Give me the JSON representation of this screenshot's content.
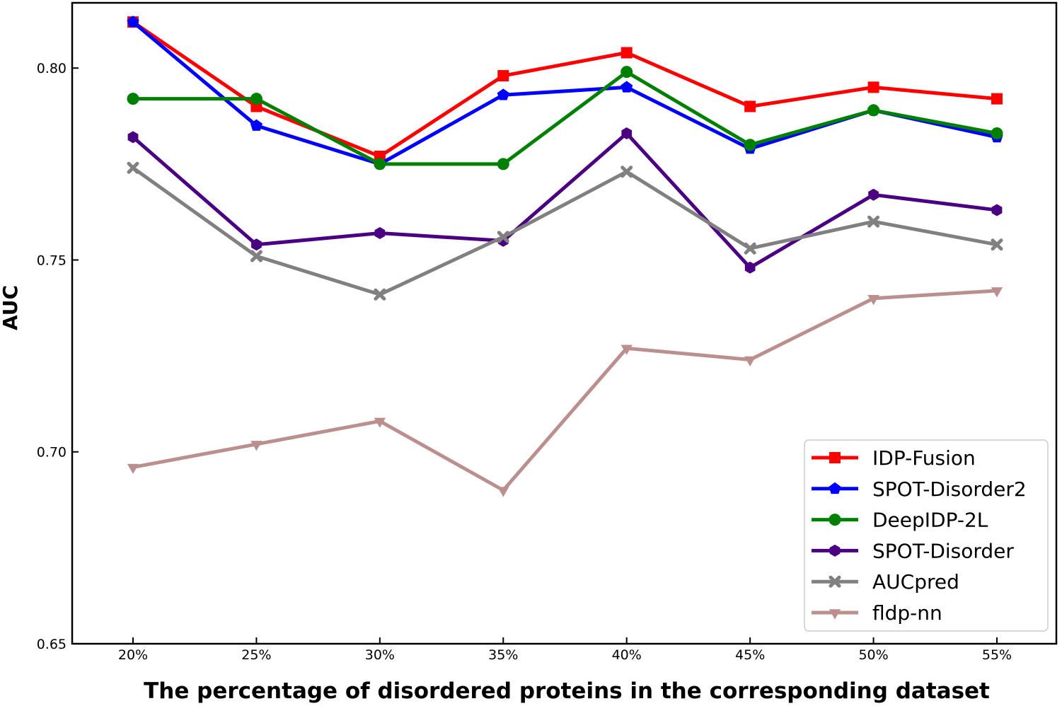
{
  "chart_data": {
    "type": "line",
    "title": "",
    "xlabel": "The percentage of disordered proteins in the corresponding dataset",
    "ylabel": "AUC",
    "categories": [
      "20%",
      "25%",
      "30%",
      "35%",
      "40%",
      "45%",
      "50%",
      "55%"
    ],
    "ylim": [
      0.65,
      0.817
    ],
    "yticks": [
      "0.65",
      "0.70",
      "0.75",
      "0.80"
    ],
    "grid": false,
    "legend_position": "lower-right",
    "series": [
      {
        "name": "IDP-Fusion",
        "color": "#ff0000",
        "marker": "square",
        "values": [
          0.812,
          0.79,
          0.777,
          0.798,
          0.804,
          0.79,
          0.795,
          0.792
        ]
      },
      {
        "name": "SPOT-Disorder2",
        "color": "#0000ff",
        "marker": "pentagon",
        "values": [
          0.812,
          0.785,
          0.775,
          0.793,
          0.795,
          0.779,
          0.789,
          0.782
        ]
      },
      {
        "name": "DeepIDP-2L",
        "color": "#008000",
        "marker": "circle",
        "values": [
          0.792,
          0.792,
          0.775,
          0.775,
          0.799,
          0.78,
          0.789,
          0.783
        ]
      },
      {
        "name": "SPOT-Disorder",
        "color": "#4b0082",
        "marker": "hexagon",
        "values": [
          0.782,
          0.754,
          0.757,
          0.755,
          0.783,
          0.748,
          0.767,
          0.763
        ]
      },
      {
        "name": "AUCpred",
        "color": "#808080",
        "marker": "x",
        "values": [
          0.774,
          0.751,
          0.741,
          0.756,
          0.773,
          0.753,
          0.76,
          0.754
        ]
      },
      {
        "name": "fldp-nn",
        "color": "#bc8f8f",
        "marker": "triangle-down",
        "values": [
          0.696,
          0.702,
          0.708,
          0.69,
          0.727,
          0.724,
          0.74,
          0.742
        ]
      }
    ]
  }
}
